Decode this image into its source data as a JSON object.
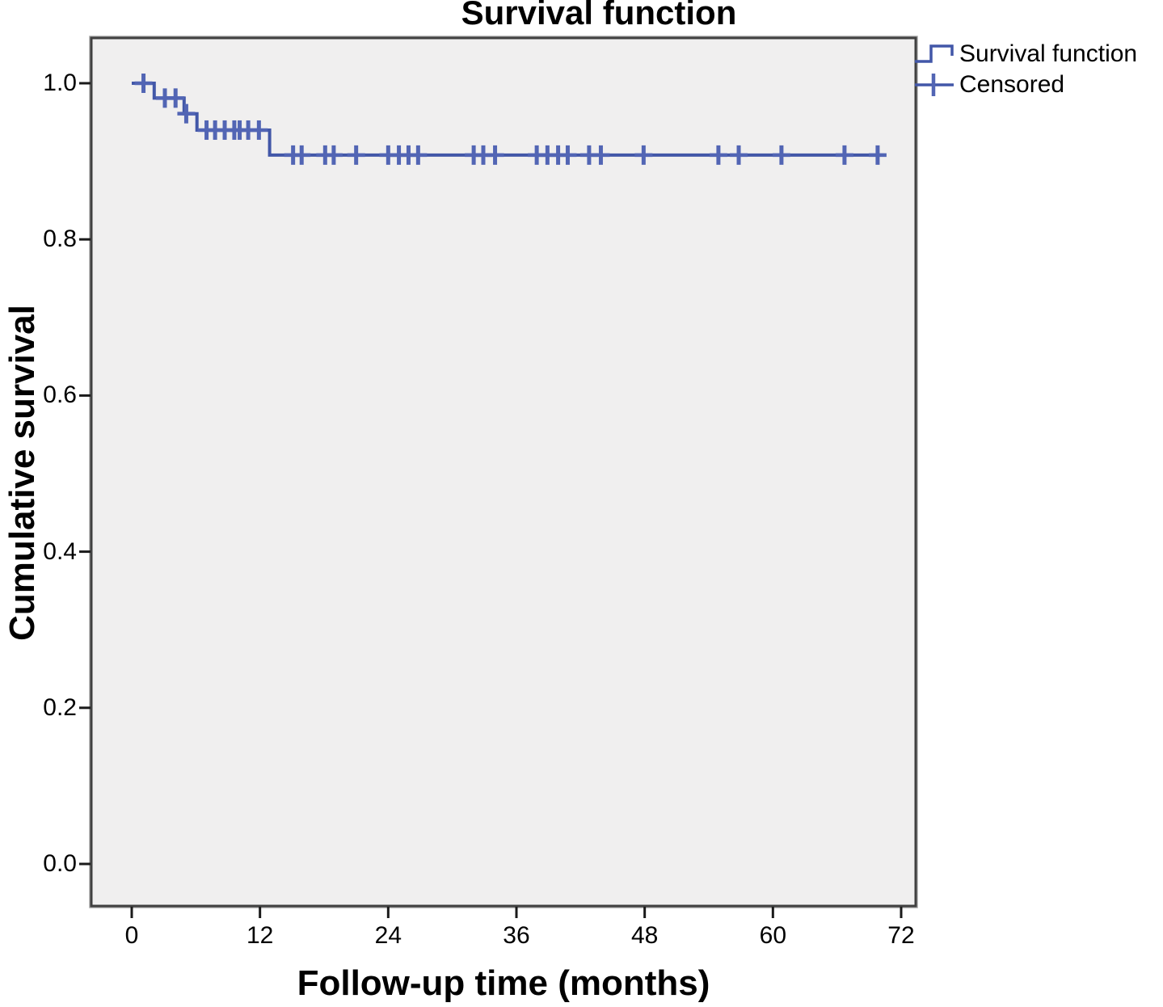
{
  "title": "Survival function",
  "legend": {
    "position": "top-right",
    "items": [
      {
        "label": "Survival function",
        "symbol": "step-line"
      },
      {
        "label": "Censored",
        "symbol": "plus-line"
      }
    ]
  },
  "chart_data": {
    "type": "line",
    "subtype": "kaplan-meier-step",
    "title": "Survival function",
    "xlabel": "Follow-up time (months)",
    "ylabel": "Cumulative survival",
    "xlim": [
      0,
      72
    ],
    "ylim": [
      0.0,
      1.0
    ],
    "xticks": [
      "0",
      "12",
      "24",
      "36",
      "48",
      "60",
      "72"
    ],
    "yticks": [
      "0.0",
      "0.2",
      "0.4",
      "0.6",
      "0.8",
      "1.0"
    ],
    "grid": false,
    "legend_position": "top-right",
    "colors": {
      "series": "#4257a8",
      "censor": "#5265b4",
      "plot_bg": "#f0efef",
      "frame": "#404040",
      "frame_outer": "#a8a8a8",
      "tick": "#1a1a1a",
      "text": "#000000"
    },
    "series": [
      {
        "name": "Survival function",
        "steps": [
          [
            0,
            1.0
          ],
          [
            2.1,
            1.0
          ],
          [
            2.1,
            0.981
          ],
          [
            4.9,
            0.981
          ],
          [
            4.9,
            0.961
          ],
          [
            6.1,
            0.961
          ],
          [
            6.1,
            0.94
          ],
          [
            12.9,
            0.94
          ],
          [
            12.9,
            0.908
          ],
          [
            70.4,
            0.908
          ]
        ]
      }
    ],
    "censored": [
      [
        1.1,
        1.0
      ],
      [
        3.1,
        0.981
      ],
      [
        4.1,
        0.981
      ],
      [
        5.1,
        0.961
      ],
      [
        7.0,
        0.94
      ],
      [
        7.8,
        0.94
      ],
      [
        8.7,
        0.94
      ],
      [
        9.6,
        0.94
      ],
      [
        10.1,
        0.94
      ],
      [
        10.9,
        0.94
      ],
      [
        11.9,
        0.94
      ],
      [
        15.1,
        0.908
      ],
      [
        15.9,
        0.908
      ],
      [
        18.1,
        0.908
      ],
      [
        18.9,
        0.908
      ],
      [
        21.0,
        0.908
      ],
      [
        24.0,
        0.908
      ],
      [
        25.0,
        0.908
      ],
      [
        25.9,
        0.908
      ],
      [
        26.8,
        0.908
      ],
      [
        32.0,
        0.908
      ],
      [
        32.9,
        0.908
      ],
      [
        34.0,
        0.908
      ],
      [
        37.9,
        0.908
      ],
      [
        38.9,
        0.908
      ],
      [
        39.9,
        0.908
      ],
      [
        40.8,
        0.908
      ],
      [
        42.8,
        0.908
      ],
      [
        43.9,
        0.908
      ],
      [
        47.9,
        0.908
      ],
      [
        54.9,
        0.908
      ],
      [
        56.8,
        0.908
      ],
      [
        60.8,
        0.908
      ],
      [
        66.7,
        0.908
      ],
      [
        69.8,
        0.908
      ]
    ]
  }
}
